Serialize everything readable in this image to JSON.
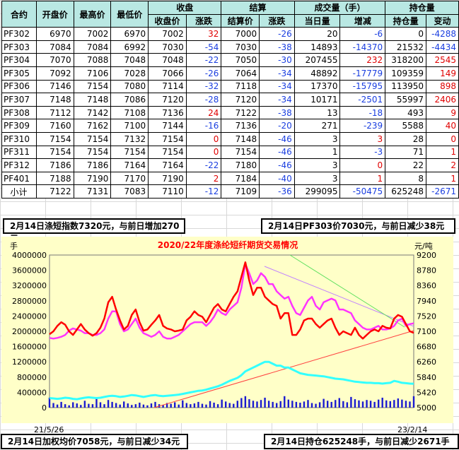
{
  "table": {
    "header_row1": {
      "contract": "合约",
      "open": "开盘价",
      "high": "最高价",
      "low": "最低价",
      "close": "收盘",
      "settle": "结算",
      "volume": "成交量（手）",
      "oi": "持仓量"
    },
    "header_row2": {
      "close_price": "收盘价",
      "close_change": "涨跌",
      "settle_price": "结算价",
      "settle_change": "涨跌",
      "vol_today": "当日量",
      "vol_change": "增减",
      "oi_qty": "持仓量",
      "oi_change": "变动"
    },
    "rows": [
      [
        "PF302",
        "6970",
        "7002",
        "6970",
        "7002",
        "32",
        "7000",
        "-26",
        "20",
        "-6",
        "0",
        "-4288"
      ],
      [
        "PF303",
        "7084",
        "7084",
        "6992",
        "7030",
        "-54",
        "7030",
        "-38",
        "14893",
        "-14370",
        "21532",
        "-4434"
      ],
      [
        "PF304",
        "7070",
        "7088",
        "7048",
        "7048",
        "-22",
        "7050",
        "-30",
        "207455",
        "232",
        "318200",
        "2545"
      ],
      [
        "PF305",
        "7092",
        "7106",
        "7028",
        "7066",
        "-26",
        "7064",
        "-34",
        "48892",
        "-17779",
        "109359",
        "149"
      ],
      [
        "PF306",
        "7146",
        "7154",
        "7080",
        "7114",
        "-32",
        "7118",
        "-34",
        "17370",
        "-15795",
        "113950",
        "898"
      ],
      [
        "PF307",
        "7148",
        "7148",
        "7086",
        "7120",
        "-28",
        "7120",
        "-34",
        "10171",
        "-2501",
        "55997",
        "2406"
      ],
      [
        "PF308",
        "7112",
        "7142",
        "7108",
        "7136",
        "24",
        "7122",
        "-38",
        "13",
        "-18",
        "493",
        "9"
      ],
      [
        "PF309",
        "7160",
        "7162",
        "7100",
        "7144",
        "-16",
        "7136",
        "-20",
        "271",
        "-239",
        "5588",
        "40"
      ],
      [
        "PF310",
        "7154",
        "7154",
        "7132",
        "7154",
        "0",
        "7148",
        "-46",
        "3",
        "3",
        "28",
        "0"
      ],
      [
        "PF311",
        "7154",
        "7154",
        "7154",
        "7154",
        "0",
        "7154",
        "-46",
        "1",
        "-3",
        "71",
        "1"
      ],
      [
        "PF312",
        "7186",
        "7186",
        "7164",
        "7164",
        "-22",
        "7180",
        "-46",
        "3",
        "0",
        "22",
        "2"
      ],
      [
        "PF401",
        "7188",
        "7190",
        "7170",
        "7190",
        "2",
        "7184",
        "-40",
        "3",
        "1",
        "8",
        "1"
      ]
    ],
    "total": [
      "小计",
      "7122",
      "7131",
      "7083",
      "7110",
      "-12",
      "7109",
      "-36",
      "299095",
      "-50475",
      "625248",
      "-2671"
    ]
  },
  "summaries": {
    "short_index": "2月14日涤短指数7320元，与前日增加270元",
    "pf303": "2月14日PF303价7030元，与前日减少38元",
    "weighted_price": "2月14日加权均价7058元，与前日减少34元",
    "open_interest": "2月14日持仓625248手，与前日减少2671手"
  },
  "colors": {
    "header_bg": "#b9e8e3",
    "chart_bg": "#ffffc8",
    "up": "#e00000",
    "down": "#1a3ee0",
    "price_line": "#ff0000",
    "index_line": "#ff33ff",
    "oi_line": "#33ffff",
    "volume_bars": "#1a1ad0"
  },
  "chart_data": {
    "type": "line",
    "title": "2020/22年度涤纶短纤期货交易情况",
    "left_unit": "手",
    "right_unit": "元/吨",
    "x_start_label": "21/5/26",
    "x_end_label": "23/2/14",
    "y_left_ticks": [
      "4000000",
      "3600000",
      "3200000",
      "2800000",
      "2400000",
      "2000000",
      "1600000",
      "1200000",
      "800000",
      "400000",
      "0"
    ],
    "y_right_ticks": [
      "9200",
      "8780",
      "8360",
      "7940",
      "7520",
      "7100",
      "6680",
      "6260",
      "5840",
      "5420",
      "5000"
    ],
    "y_left_lim": [
      0,
      4000000
    ],
    "y_right_lim": [
      5000,
      9200
    ],
    "series": [
      {
        "role": "weighted_price",
        "axis": "right",
        "values": [
          7020,
          7100,
          7250,
          7350,
          7280,
          7100,
          7000,
          7150,
          7300,
          7150,
          7050,
          6980,
          7050,
          7200,
          7450,
          7900,
          8050,
          7700,
          7400,
          7150,
          7250,
          7550,
          7700,
          7350,
          7120,
          7150,
          7280,
          7400,
          7550,
          7250,
          7180,
          7150,
          7100,
          7120,
          7150,
          7400,
          7500,
          7650,
          7550,
          7500,
          7350,
          7550,
          7750,
          7850,
          7700,
          7650,
          7850,
          8050,
          8200,
          8600,
          9000,
          8500,
          8100,
          8300,
          8300,
          8050,
          7950,
          7850,
          7800,
          7450,
          7600,
          7600,
          7000,
          7000,
          7150,
          7400,
          7450,
          7450,
          7300,
          7200,
          7300,
          7400,
          7450,
          7200,
          7000,
          7100,
          7050,
          7000,
          7200,
          7000,
          6900,
          7000,
          7100,
          7150,
          7100,
          7250,
          7200,
          7180,
          7450,
          7550,
          7500,
          7300,
          7100,
          7058
        ]
      },
      {
        "role": "short_index",
        "axis": "right",
        "values": [
          6920,
          6900,
          6920,
          6950,
          7000,
          7120,
          7180,
          7150,
          7120,
          7050,
          7050,
          7000,
          7000,
          7050,
          7150,
          7450,
          7650,
          7650,
          7300,
          7100,
          7150,
          7300,
          7450,
          7200,
          7050,
          7000,
          6950,
          7000,
          7100,
          6950,
          6900,
          6900,
          6950,
          7000,
          7100,
          7200,
          7300,
          7350,
          7350,
          7350,
          7250,
          7350,
          7500,
          7700,
          7600,
          7550,
          7700,
          7800,
          7900,
          8300,
          8950,
          8700,
          8400,
          8500,
          8700,
          8600,
          8400,
          8400,
          8200,
          8100,
          8000,
          8050,
          7800,
          7600,
          7550,
          7750,
          7950,
          8050,
          7800,
          7700,
          7900,
          7950,
          8000,
          7950,
          7700,
          7700,
          7650,
          7600,
          7400,
          7300,
          7200,
          7150,
          7150,
          7200,
          7250,
          7150,
          7150,
          7180,
          7250,
          7400,
          7450,
          7250,
          7300,
          7320
        ]
      },
      {
        "role": "open_interest",
        "axis": "left",
        "values": [
          250000,
          240000,
          230000,
          240000,
          260000,
          250000,
          230000,
          220000,
          240000,
          260000,
          270000,
          260000,
          250000,
          260000,
          280000,
          300000,
          310000,
          300000,
          280000,
          290000,
          310000,
          330000,
          320000,
          300000,
          280000,
          300000,
          320000,
          330000,
          310000,
          300000,
          310000,
          320000,
          330000,
          340000,
          360000,
          380000,
          400000,
          420000,
          440000,
          450000,
          470000,
          500000,
          530000,
          560000,
          600000,
          650000,
          700000,
          740000,
          780000,
          850000,
          950000,
          1000000,
          1050000,
          1100000,
          1150000,
          1200000,
          1200000,
          1150000,
          1100000,
          1100000,
          1050000,
          1050000,
          1000000,
          950000,
          900000,
          880000,
          860000,
          850000,
          840000,
          830000,
          820000,
          800000,
          780000,
          760000,
          750000,
          740000,
          720000,
          700000,
          680000,
          670000,
          660000,
          650000,
          650000,
          640000,
          640000,
          630000,
          640000,
          650000,
          700000,
          680000,
          650000,
          640000,
          630000,
          625248
        ]
      },
      {
        "role": "volume",
        "axis": "left",
        "values": [
          260000,
          120000,
          80000,
          150000,
          90000,
          60000,
          140000,
          110000,
          70000,
          180000,
          100000,
          90000,
          230000,
          140000,
          90000,
          200000,
          150000,
          120000,
          80000,
          160000,
          110000,
          70000,
          90000,
          130000,
          80000,
          60000,
          110000,
          150000,
          90000,
          70000,
          120000,
          100000,
          140000,
          80000,
          190000,
          120000,
          90000,
          110000,
          150000,
          100000,
          80000,
          170000,
          130000,
          90000,
          210000,
          160000,
          120000,
          100000,
          180000,
          250000,
          300000,
          220000,
          180000,
          160000,
          200000,
          260000,
          180000,
          150000,
          120000,
          170000,
          300000,
          210000,
          180000,
          150000,
          130000,
          160000,
          200000,
          120000,
          100000,
          140000,
          230000,
          180000,
          150000,
          200000,
          250000,
          170000,
          140000,
          280000,
          220000,
          190000,
          160000,
          200000,
          180000,
          150000,
          210000,
          260000,
          190000,
          170000,
          200000,
          240000,
          210000,
          180000,
          160000,
          299095
        ]
      }
    ],
    "trend_lines": true,
    "grid": false
  }
}
